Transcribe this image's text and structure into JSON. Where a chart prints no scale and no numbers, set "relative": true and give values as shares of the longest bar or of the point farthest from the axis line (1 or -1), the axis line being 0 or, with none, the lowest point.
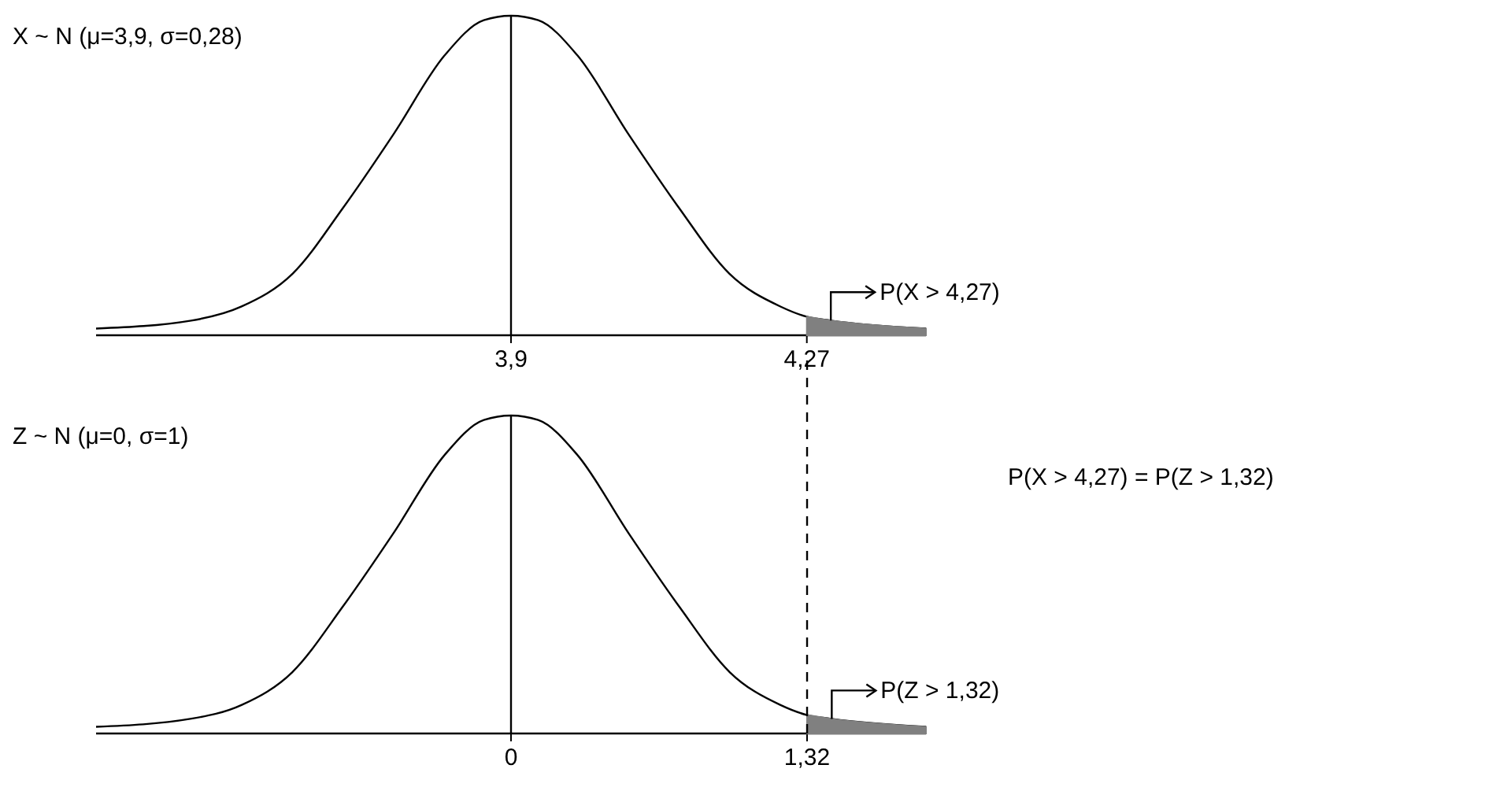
{
  "chart_data": [
    {
      "type": "line",
      "title": "X ~ N (μ=3,9, σ=0,28)",
      "relative": true,
      "xlim": [
        3.381,
        4.419
      ],
      "xticks": [
        {
          "value": 3.9,
          "label": "3,9"
        },
        {
          "value": 4.27,
          "label": "4,27"
        }
      ],
      "tick_labels": "x",
      "series": [
        {
          "color": "#000000",
          "x": [
            3.381,
            3.5,
            3.563,
            3.627,
            3.69,
            3.753,
            3.817,
            3.866,
            3.9,
            3.934,
            3.983,
            4.047,
            4.11,
            4.173,
            4.237,
            4.27,
            4.3,
            4.419
          ],
          "values": [
            0.021,
            0.046,
            0.09,
            0.193,
            0.399,
            0.629,
            0.876,
            0.986,
            1,
            0.986,
            0.876,
            0.629,
            0.399,
            0.193,
            0.09,
            0.058,
            0.046,
            0.021
          ]
        },
        {
          "type": "area",
          "color": "#808080",
          "x": [
            4.27,
            4.3,
            4.419
          ],
          "values": [
            0.058,
            0.046,
            0.021
          ]
        }
      ],
      "ref_lines": [
        {
          "axis": "x",
          "value": 3.9,
          "color": "#000000",
          "line_style": "solid"
        }
      ],
      "annotations": [
        {
          "text": "P(X > 4,27)",
          "x": 4.3,
          "y": 0.046
        }
      ]
    },
    {
      "type": "line",
      "title": "Z ~ N (μ=0, σ=1)",
      "relative": true,
      "xlim": [
        -1.85,
        1.85
      ],
      "xticks": [
        0,
        {
          "value": 1.32,
          "label": "1,32"
        }
      ],
      "tick_labels": "x",
      "series": [
        {
          "color": "#000000",
          "x": [
            -1.85,
            -1.43,
            -1.2,
            -0.975,
            -0.75,
            -0.525,
            -0.296,
            -0.121,
            0,
            0.121,
            0.296,
            0.525,
            0.75,
            0.975,
            1.2,
            1.32,
            1.43,
            1.85
          ],
          "values": [
            0.021,
            0.046,
            0.09,
            0.193,
            0.399,
            0.629,
            0.876,
            0.986,
            1,
            0.986,
            0.876,
            0.629,
            0.399,
            0.193,
            0.09,
            0.058,
            0.046,
            0.021
          ]
        },
        {
          "type": "area",
          "color": "#808080",
          "x": [
            1.32,
            1.43,
            1.85
          ],
          "values": [
            0.058,
            0.046,
            0.021
          ]
        }
      ],
      "ref_lines": [
        {
          "axis": "x",
          "value": 0,
          "color": "#000000",
          "line_style": "solid"
        },
        {
          "axis": "x",
          "value": 1.32,
          "color": "#000000",
          "line_style": "dashed"
        }
      ],
      "annotations": [
        {
          "text": "P(Z > 1,32)",
          "x": 1.43,
          "y": 0.046
        },
        "P(X > 4,27) = P(Z > 1,32)"
      ]
    }
  ]
}
